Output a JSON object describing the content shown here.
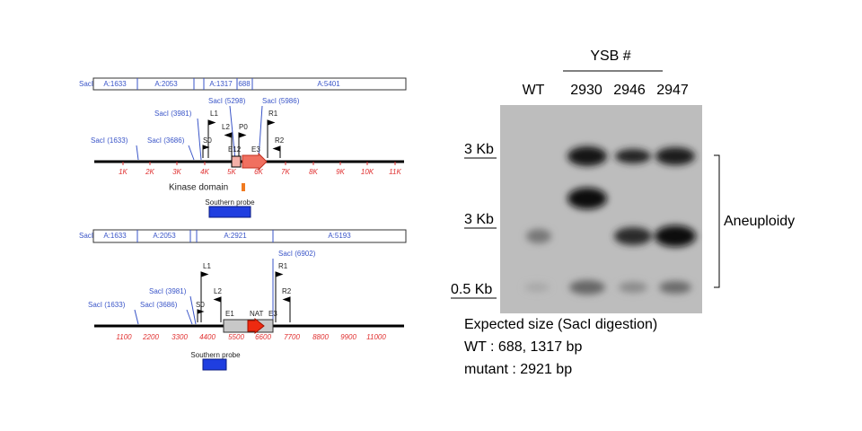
{
  "map_top": {
    "fragment_label": "SacI",
    "fragments": [
      "A:1633",
      "A:2053",
      "A:1317",
      "688",
      "A:5401"
    ],
    "axis_labels": [
      "1K",
      "2K",
      "3K",
      "4K",
      "5K",
      "6K",
      "7K",
      "8K",
      "9K",
      "10K",
      "11K"
    ],
    "sites": [
      "SacI (1633)",
      "SacI (3686)",
      "SacI (3981)",
      "SacI (5298)",
      "SacI (5986)"
    ],
    "primers": [
      "S0",
      "L1",
      "L2",
      "P0",
      "R1",
      "R2"
    ],
    "exons": [
      "E12",
      "E3"
    ],
    "kinase_label": "Kinase domain",
    "probe_label": "Southern probe"
  },
  "map_bottom": {
    "fragment_label": "SacI",
    "fragments": [
      "A:1633",
      "A:2053",
      "A:2921",
      "A:5193"
    ],
    "axis_labels": [
      "1100",
      "2200",
      "3300",
      "4400",
      "5500",
      "6600",
      "7700",
      "8800",
      "9900",
      "11000"
    ],
    "sites": [
      "SacI (1633)",
      "SacI (3686)",
      "SacI (3981)",
      "SacI (6902)"
    ],
    "primers": [
      "S0",
      "L1",
      "L2",
      "R1",
      "R2"
    ],
    "exons": [
      "E1",
      "E3"
    ],
    "marker": "NAT",
    "probe_label": "Southern probe"
  },
  "blot": {
    "group_label": "YSB #",
    "lanes": [
      "WT",
      "2930",
      "2946",
      "2947"
    ],
    "size_markers": [
      "3 Kb",
      "3 Kb",
      "0.5 Kb"
    ],
    "annotation": "Aneuploidy",
    "notes": [
      "Expected size (SacI digestion)",
      "WT : 688, 1317 bp",
      "mutant : 2921 bp"
    ]
  }
}
